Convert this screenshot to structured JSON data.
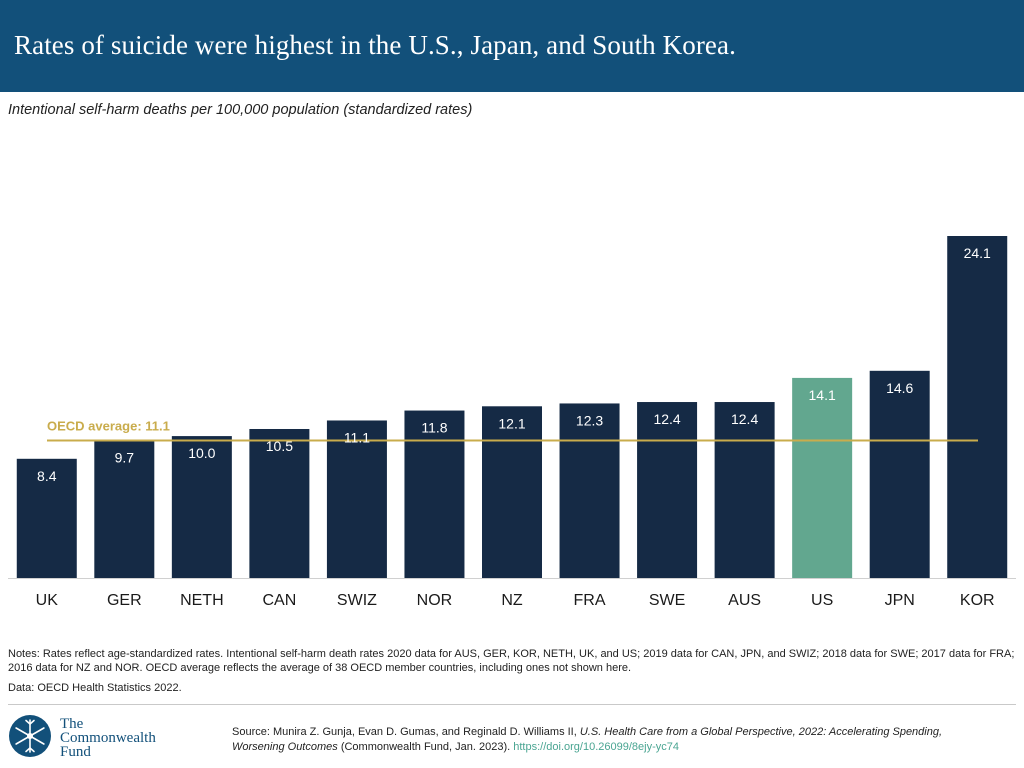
{
  "header": {
    "title": "Rates of suicide were highest in the U.S., Japan, and South Korea."
  },
  "subtitle": "Intentional self-harm deaths per 100,000 population (standardized rates)",
  "chart_data": {
    "type": "bar",
    "title": "Rates of suicide were highest in the U.S., Japan, and South Korea.",
    "ylabel": "Intentional self-harm deaths per 100,000 population (standardized rates)",
    "xlabel": "",
    "categories": [
      "UK",
      "GER",
      "NETH",
      "CAN",
      "SWIZ",
      "NOR",
      "NZ",
      "FRA",
      "SWE",
      "AUS",
      "US",
      "JPN",
      "KOR"
    ],
    "values": [
      8.4,
      9.7,
      10.0,
      10.5,
      11.1,
      11.8,
      12.1,
      12.3,
      12.4,
      12.4,
      14.1,
      14.6,
      24.1
    ],
    "data_labels": [
      "8.4",
      "9.7",
      "10.0",
      "10.5",
      "11.1",
      "11.8",
      "12.1",
      "12.3",
      "12.4",
      "12.4",
      "14.1",
      "14.6",
      "24.1"
    ],
    "highlight": "US",
    "reference_line": {
      "label": "OECD average: 11.1",
      "value": 11.1
    },
    "ylim": [
      0,
      24.1
    ],
    "grid": false,
    "legend": "none"
  },
  "colors": {
    "header_bg": "#12507a",
    "bar": "#152a45",
    "bar_highlight": "#62a78f",
    "reference_line": "#c9ac4c",
    "link": "#4aa592"
  },
  "notes": "Notes: Rates reflect age-standardized rates. Intentional self-harm death rates 2020 data for AUS, GER, KOR, NETH, UK, and US; 2019 data for CAN, JPN, and SWIZ; 2018 data for SWE; 2017 data for FRA; 2016 data for NZ and NOR. OECD average reflects the average of 38 OECD member countries, including ones not shown here.",
  "data_source": "Data: OECD Health Statistics 2022.",
  "logo": {
    "line1": "The",
    "line2": "Commonwealth",
    "line3": "Fund",
    "icon": "snowflake-emblem-icon"
  },
  "source": {
    "prefix": "Source: Munira Z. Gunja, Evan D. Gumas, and Reginald D. Williams II, ",
    "title": "U.S. Health Care from a Global Perspective, 2022: Accelerating Spending, Worsening Outcomes",
    "suffix": " (Commonwealth Fund, Jan. 2023). ",
    "link": "https://doi.org/10.26099/8ejy-yc74"
  }
}
